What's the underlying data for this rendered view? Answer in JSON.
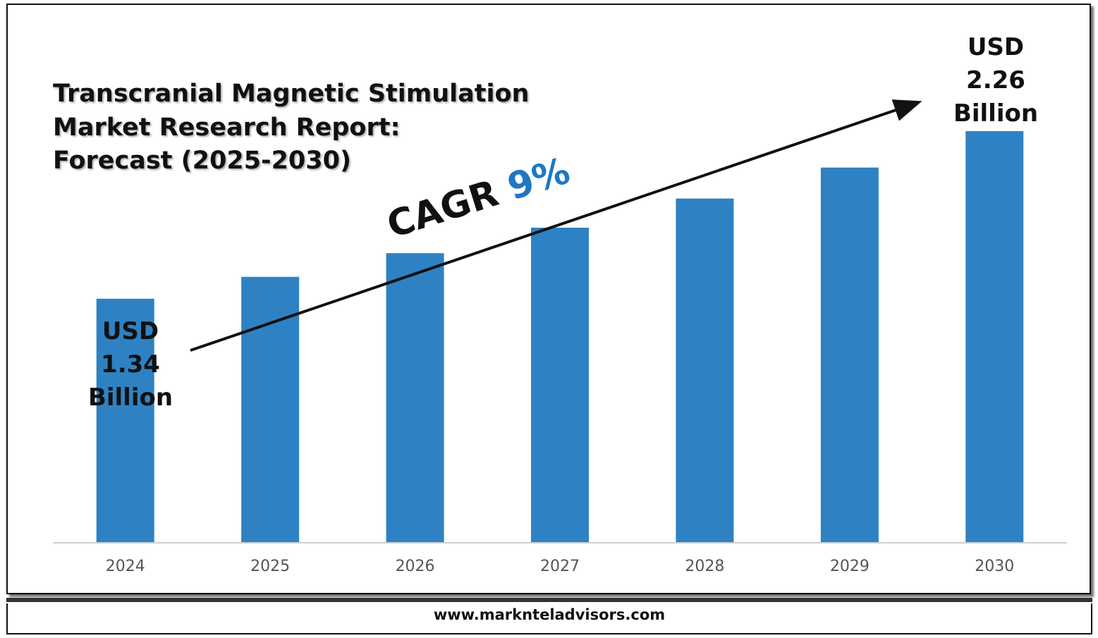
{
  "title": {
    "line1": "Transcranial Magnetic Stimulation",
    "line2": "Market Research Report:",
    "line3": "Forecast (2025-2030)"
  },
  "annotations": {
    "start": {
      "line1": "USD",
      "line2": "1.34",
      "line3": "Billion"
    },
    "end": {
      "line1": "USD",
      "line2": "2.26",
      "line3": "Billion"
    },
    "cagr_label": "CAGR",
    "cagr_value": "9%"
  },
  "footer": {
    "url": "www.marknteladvisors.com"
  },
  "colors": {
    "bar": "#2e82c3",
    "axis": "#d0d0d0",
    "accent": "#1f77c4",
    "text": "#111111"
  },
  "chart_data": {
    "type": "bar",
    "categories": [
      "2024",
      "2025",
      "2026",
      "2027",
      "2028",
      "2029",
      "2030"
    ],
    "values": [
      1.34,
      1.46,
      1.59,
      1.73,
      1.89,
      2.06,
      2.26
    ],
    "ylim": [
      0,
      2.26
    ],
    "y_axis_visible": false,
    "grid": false,
    "legend": "none",
    "trend_arrow": true
  }
}
